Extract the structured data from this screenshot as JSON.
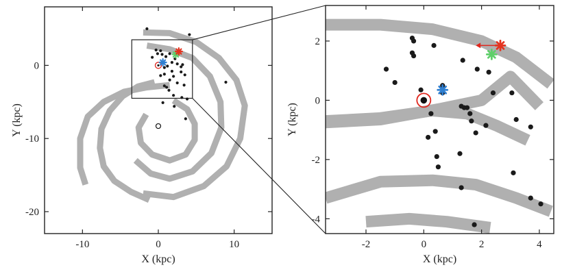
{
  "chart_data": [
    {
      "type": "scatter",
      "panel": "left",
      "xlabel": "X (kpc)",
      "ylabel": "Y (kpc)",
      "xlim": [
        -15,
        15
      ],
      "ylim": [
        -23,
        8
      ],
      "xticks": [
        -10,
        0,
        10
      ],
      "yticks": [
        0,
        -10,
        -20
      ],
      "tick_labels_x": [
        "-10",
        "0",
        "10"
      ],
      "tick_labels_y": [
        "0",
        "-10",
        "-20"
      ],
      "grid": false,
      "spiral_arms": [
        [
          [
            -2.0,
            4.5
          ],
          [
            1.5,
            4.4
          ],
          [
            5,
            3.2
          ],
          [
            8,
            1
          ],
          [
            10.3,
            -2
          ],
          [
            11.4,
            -5.5
          ],
          [
            10.8,
            -10
          ],
          [
            9,
            -13.8
          ],
          [
            6,
            -16.5
          ],
          [
            2,
            -18
          ],
          [
            -2,
            -17.5
          ]
        ],
        [
          [
            -1.5,
            2.7
          ],
          [
            1.5,
            2.2
          ],
          [
            4.5,
            1
          ],
          [
            6.8,
            -1.5
          ],
          [
            8.2,
            -5
          ],
          [
            8.3,
            -8.5
          ],
          [
            7,
            -12
          ],
          [
            4.5,
            -14.5
          ],
          [
            1.5,
            -15.5
          ],
          [
            -1,
            -14.8
          ],
          [
            -3,
            -13
          ]
        ],
        [
          [
            2.0,
            -4.8
          ],
          [
            3.8,
            -6
          ],
          [
            4.8,
            -8
          ],
          [
            4.8,
            -10.2
          ],
          [
            3.6,
            -12.2
          ],
          [
            1.5,
            -13
          ],
          [
            -0.8,
            -12.2
          ],
          [
            -2.3,
            -10.6
          ],
          [
            -2.6,
            -8.5
          ],
          [
            -1.6,
            -6.7
          ]
        ],
        [
          [
            -0.5,
            -2.3
          ],
          [
            -2.7,
            -2.9
          ],
          [
            -4.7,
            -4.2
          ],
          [
            -6.4,
            -6.2
          ],
          [
            -7.5,
            -8.7
          ],
          [
            -7.7,
            -11.3
          ],
          [
            -7.2,
            -13.8
          ],
          [
            -5.8,
            -15.8
          ],
          [
            -3.6,
            -17.3
          ],
          [
            -1.2,
            -18.4
          ]
        ],
        [
          [
            1.5,
            -2.7
          ],
          [
            -1.5,
            -3
          ],
          [
            -4.5,
            -3.6
          ],
          [
            -7.2,
            -5
          ],
          [
            -9.3,
            -7
          ],
          [
            -10.3,
            -10
          ],
          [
            -10.3,
            -14
          ],
          [
            -9.6,
            -16.3
          ]
        ]
      ],
      "sun": [
        0,
        0
      ],
      "galactic_center": [
        0,
        -8.3
      ],
      "red_star": [
        2.7,
        1.9
      ],
      "green_star": [
        2.3,
        1.5
      ],
      "blue_star": [
        0.6,
        0.4
      ],
      "masers": [
        [
          -1.5,
          5
        ],
        [
          4.1,
          4.2
        ],
        [
          8.9,
          -2.3
        ],
        [
          -0.3,
          2.1
        ],
        [
          0.3,
          2.0
        ],
        [
          0.5,
          1.5
        ],
        [
          -0.1,
          1.6
        ],
        [
          -0.8,
          1.1
        ],
        [
          1.0,
          1.2
        ],
        [
          1.5,
          1.6
        ],
        [
          2.2,
          0.9
        ],
        [
          1.8,
          0.4
        ],
        [
          2.5,
          0.2
        ],
        [
          3.2,
          0.1
        ],
        [
          3.0,
          -0.2
        ],
        [
          0.8,
          -0.3
        ],
        [
          1.2,
          -0.1
        ],
        [
          1.8,
          -0.8
        ],
        [
          3.0,
          -0.9
        ],
        [
          0.8,
          -1.2
        ],
        [
          2.0,
          -1.5
        ],
        [
          3.5,
          -1.3
        ],
        [
          1.5,
          -2.0
        ],
        [
          2.5,
          -2.4
        ],
        [
          3.4,
          -2.7
        ],
        [
          0.8,
          -2.8
        ],
        [
          1.4,
          -3.4
        ],
        [
          2.0,
          -4.1
        ],
        [
          3.1,
          -4.4
        ],
        [
          3.8,
          -4.6
        ],
        [
          0.6,
          -5.1
        ],
        [
          2.1,
          -5.6
        ],
        [
          3.6,
          -7.3
        ],
        [
          0.3,
          -1.4
        ],
        [
          1.1,
          -3.0
        ]
      ],
      "zoom_box": {
        "x": [
          -3.5,
          4.5
        ],
        "y": [
          -4.5,
          3.5
        ]
      }
    },
    {
      "type": "scatter",
      "panel": "right",
      "xlabel": "X (kpc)",
      "ylabel": "Y (kpc)",
      "xlim": [
        -3.4,
        4.5
      ],
      "ylim": [
        -4.5,
        3.2
      ],
      "xticks": [
        -2,
        0,
        2,
        4
      ],
      "yticks": [
        2,
        0,
        -2,
        -4
      ],
      "tick_labels_x": [
        "-2",
        "0",
        "2",
        "4"
      ],
      "tick_labels_y": [
        "2",
        "0",
        "-2",
        "-4"
      ],
      "grid": false,
      "spiral_arms": [
        [
          [
            -3.4,
            2.55
          ],
          [
            -1.5,
            2.55
          ],
          [
            0.3,
            2.4
          ],
          [
            2,
            2.0
          ],
          [
            3.2,
            1.45
          ],
          [
            4.4,
            0.55
          ]
        ],
        [
          [
            -3.4,
            -0.75
          ],
          [
            -1.5,
            -0.65
          ],
          [
            0.5,
            -0.3
          ],
          [
            2,
            0.0
          ],
          [
            3.0,
            0.8
          ],
          [
            4.0,
            -0.2
          ]
        ],
        [
          [
            -3.4,
            -0.7
          ],
          [
            -1.5,
            -0.6
          ],
          [
            0.3,
            -0.35
          ],
          [
            1.5,
            -0.45
          ],
          [
            2.5,
            -0.85
          ],
          [
            3.6,
            -1.35
          ]
        ],
        [
          [
            -3.4,
            -3.3
          ],
          [
            -1.5,
            -2.75
          ],
          [
            0.3,
            -2.7
          ],
          [
            1.8,
            -2.85
          ],
          [
            3.2,
            -3.3
          ],
          [
            4.4,
            -3.75
          ]
        ],
        [
          [
            -2.0,
            -4.1
          ],
          [
            -0.5,
            -4.0
          ],
          [
            0.8,
            -4.1
          ],
          [
            2.3,
            -4.3
          ]
        ]
      ],
      "sun": [
        0,
        0
      ],
      "red_star": [
        2.65,
        1.85
      ],
      "red_arrow_to": [
        1.8,
        1.85
      ],
      "green_star": [
        2.35,
        1.55
      ],
      "blue_star": [
        0.65,
        0.35
      ],
      "masers": [
        [
          -0.4,
          2.1
        ],
        [
          -0.35,
          2.0
        ],
        [
          0.35,
          1.85
        ],
        [
          -0.4,
          1.6
        ],
        [
          -0.35,
          1.5
        ],
        [
          -1.3,
          1.05
        ],
        [
          1.35,
          1.35
        ],
        [
          2.25,
          0.95
        ],
        [
          2.4,
          0.25
        ],
        [
          1.85,
          1.05
        ],
        [
          -1.0,
          0.6
        ],
        [
          0.65,
          0.5
        ],
        [
          -0.1,
          0.35
        ],
        [
          0.65,
          0.25
        ],
        [
          3.05,
          0.25
        ],
        [
          1.3,
          -0.2
        ],
        [
          1.5,
          -0.25
        ],
        [
          1.4,
          -0.25
        ],
        [
          1.6,
          -0.45
        ],
        [
          1.65,
          -0.7
        ],
        [
          2.15,
          -0.85
        ],
        [
          3.2,
          -0.65
        ],
        [
          3.7,
          -0.9
        ],
        [
          0.25,
          -0.45
        ],
        [
          0.15,
          -1.25
        ],
        [
          1.8,
          -1.1
        ],
        [
          0.4,
          -1.05
        ],
        [
          1.25,
          -1.8
        ],
        [
          0.45,
          -1.9
        ],
        [
          0.5,
          -2.25
        ],
        [
          3.1,
          -2.45
        ],
        [
          1.3,
          -2.95
        ],
        [
          3.7,
          -3.3
        ],
        [
          4.05,
          -3.5
        ],
        [
          1.75,
          -4.2
        ]
      ]
    }
  ]
}
